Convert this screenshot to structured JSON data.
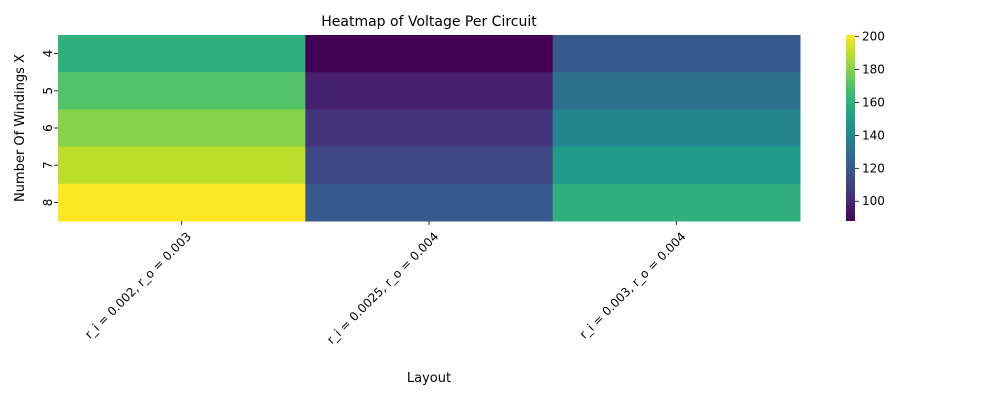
{
  "chart_data": {
    "type": "heatmap",
    "title": "Heatmap of Voltage Per Circuit",
    "xlabel": "Layout",
    "ylabel": "Number Of Windings X",
    "x_categories": [
      "r_i = 0.002, r_o = 0.003",
      "r_i = 0.0025, r_o = 0.004",
      "r_i = 0.003, r_o = 0.004"
    ],
    "y_categories": [
      "4",
      "5",
      "6",
      "7",
      "8"
    ],
    "values": [
      [
        160,
        88,
        120
      ],
      [
        170,
        98,
        130
      ],
      [
        180,
        105,
        140
      ],
      [
        190,
        112,
        150
      ],
      [
        201,
        120,
        160
      ]
    ],
    "colorbar": {
      "min": 88,
      "max": 201,
      "ticks": [
        100,
        120,
        140,
        160,
        180,
        200
      ],
      "colormap": "viridis"
    }
  }
}
